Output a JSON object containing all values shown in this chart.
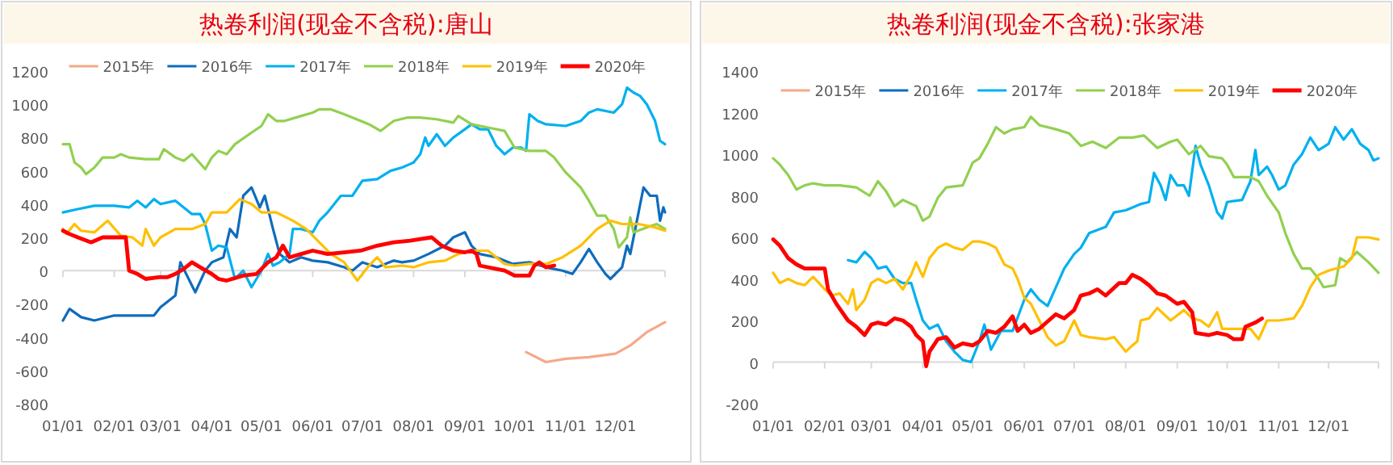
{
  "chart_data": [
    {
      "type": "line",
      "title": "热卷利润(现金不含税):唐山",
      "legend": "top",
      "ylim": [
        -800,
        1200
      ],
      "yticks": [
        -800,
        -600,
        -400,
        -200,
        0,
        200,
        400,
        600,
        800,
        1000,
        1200
      ],
      "xlim": [
        "--01-01",
        "--12-31"
      ],
      "xticks": [
        {
          "value": "--01-01",
          "label": "01/01"
        },
        {
          "value": "--02-01",
          "label": "02/01"
        },
        {
          "value": "--03-01",
          "label": "03/01"
        },
        {
          "value": "--04-01",
          "label": "04/01"
        },
        {
          "value": "--05-01",
          "label": "05/01"
        },
        {
          "value": "--06-01",
          "label": "06/01"
        },
        {
          "value": "--07-01",
          "label": "07/01"
        },
        {
          "value": "--08-01",
          "label": "08/01"
        },
        {
          "value": "--09-01",
          "label": "09/01"
        },
        {
          "value": "--10-01",
          "label": "10/01"
        },
        {
          "value": "--11-01",
          "label": "11/01"
        },
        {
          "value": "--12-01",
          "label": "12/01"
        },
        {
          "value": "--12-31",
          "label": null
        }
      ],
      "series": [
        {
          "name": "2015年",
          "color": "#f4a98a",
          "x": [
            "--10-08",
            "--10-20",
            "--11-01",
            "--11-15",
            "--12-01",
            "--12-10",
            "--12-20",
            "--12-31"
          ],
          "values": [
            -490,
            -550,
            -530,
            -520,
            -500,
            -450,
            -370,
            -310
          ]
        },
        {
          "name": "2016年",
          "color": "#0f6cbd",
          "x": [
            "--01-01",
            "--01-05",
            "--01-12",
            "--01-20",
            "--02-01",
            "--02-15",
            "--02-25",
            "--03-01",
            "--03-10",
            "--03-13",
            "--03-18",
            "--03-22",
            "--03-28",
            "--04-01",
            "--04-08",
            "--04-12",
            "--04-16",
            "--04-20",
            "--04-25",
            "--04-30",
            "--05-03",
            "--05-08",
            "--05-12",
            "--05-18",
            "--05-25",
            "--06-01",
            "--06-10",
            "--06-20",
            "--06-25",
            "--07-01",
            "--07-10",
            "--07-20",
            "--07-25",
            "--08-01",
            "--08-10",
            "--08-20",
            "--08-25",
            "--09-01",
            "--09-05",
            "--09-10",
            "--09-20",
            "--09-30",
            "--10-10",
            "--10-20",
            "--10-30",
            "--11-05",
            "--11-10",
            "--11-15",
            "--11-20",
            "--11-25",
            "--11-28",
            "--12-05",
            "--12-08",
            "--12-10",
            "--12-15",
            "--12-18",
            "--12-22",
            "--12-26",
            "--12-28",
            "--12-30",
            "--12-31"
          ],
          "values": [
            -300,
            -230,
            -280,
            -300,
            -270,
            -270,
            -270,
            -220,
            -150,
            50,
            -50,
            -130,
            0,
            50,
            80,
            250,
            200,
            450,
            500,
            380,
            450,
            250,
            100,
            50,
            80,
            60,
            50,
            20,
            0,
            50,
            20,
            60,
            50,
            60,
            100,
            150,
            200,
            230,
            150,
            100,
            80,
            40,
            50,
            20,
            0,
            -20,
            50,
            130,
            50,
            -20,
            -50,
            20,
            150,
            100,
            350,
            500,
            450,
            450,
            300,
            380,
            350
          ]
        },
        {
          "name": "2017年",
          "color": "#00b0f0",
          "x": [
            "--01-01",
            "--01-10",
            "--01-20",
            "--02-01",
            "--02-10",
            "--02-15",
            "--02-20",
            "--02-25",
            "--03-01",
            "--03-10",
            "--03-15",
            "--03-20",
            "--03-25",
            "--03-28",
            "--04-01",
            "--04-05",
            "--04-10",
            "--04-15",
            "--04-20",
            "--04-25",
            "--05-01",
            "--05-05",
            "--05-08",
            "--05-12",
            "--05-18",
            "--05-20",
            "--05-25",
            "--06-01",
            "--06-05",
            "--06-10",
            "--06-18",
            "--06-25",
            "--07-01",
            "--07-10",
            "--07-18",
            "--07-25",
            "--08-01",
            "--08-05",
            "--08-08",
            "--08-10",
            "--08-15",
            "--08-20",
            "--08-25",
            "--09-01",
            "--09-05",
            "--09-10",
            "--09-15",
            "--09-20",
            "--09-25",
            "--09-30",
            "--10-05",
            "--10-08",
            "--10-10",
            "--10-15",
            "--10-20",
            "--11-01",
            "--11-10",
            "--11-15",
            "--11-20",
            "--11-30",
            "--12-05",
            "--12-08",
            "--12-12",
            "--12-16",
            "--12-20",
            "--12-25",
            "--12-28",
            "--12-31"
          ],
          "values": [
            350,
            370,
            390,
            390,
            380,
            420,
            380,
            430,
            400,
            420,
            380,
            340,
            340,
            280,
            120,
            150,
            140,
            -50,
            0,
            -100,
            0,
            100,
            30,
            50,
            100,
            250,
            250,
            230,
            300,
            350,
            450,
            450,
            540,
            550,
            600,
            620,
            650,
            700,
            800,
            750,
            820,
            750,
            800,
            850,
            880,
            850,
            850,
            750,
            700,
            740,
            740,
            720,
            940,
            900,
            880,
            870,
            900,
            950,
            970,
            950,
            1000,
            1100,
            1070,
            1050,
            1000,
            900,
            780,
            760
          ]
        },
        {
          "name": "2018年",
          "color": "#92d050",
          "x": [
            "--01-01",
            "--01-05",
            "--01-08",
            "--01-12",
            "--01-15",
            "--01-20",
            "--01-25",
            "--02-01",
            "--02-05",
            "--02-10",
            "--02-20",
            "--02-28",
            "--03-03",
            "--03-10",
            "--03-15",
            "--03-20",
            "--03-28",
            "--04-01",
            "--04-05",
            "--04-10",
            "--04-15",
            "--04-25",
            "--05-01",
            "--05-05",
            "--05-10",
            "--05-15",
            "--05-25",
            "--06-01",
            "--06-05",
            "--06-12",
            "--06-20",
            "--06-30",
            "--07-05",
            "--07-12",
            "--07-20",
            "--07-28",
            "--08-05",
            "--08-15",
            "--08-25",
            "--08-28",
            "--09-05",
            "--09-15",
            "--09-25",
            "--10-01",
            "--10-10",
            "--10-20",
            "--10-25",
            "--11-01",
            "--11-10",
            "--11-15",
            "--11-20",
            "--11-25",
            "--11-30",
            "--12-03",
            "--12-08",
            "--12-10",
            "--12-12",
            "--12-20",
            "--12-26",
            "--12-31"
          ],
          "values": [
            760,
            760,
            650,
            620,
            580,
            620,
            680,
            680,
            700,
            680,
            670,
            670,
            730,
            680,
            660,
            700,
            610,
            680,
            720,
            700,
            760,
            830,
            870,
            940,
            900,
            900,
            930,
            950,
            970,
            970,
            940,
            900,
            880,
            840,
            900,
            920,
            920,
            910,
            890,
            930,
            880,
            860,
            840,
            740,
            720,
            720,
            680,
            590,
            500,
            420,
            330,
            330,
            250,
            140,
            200,
            320,
            230,
            260,
            280,
            250
          ]
        },
        {
          "name": "2019年",
          "color": "#ffc000",
          "x": [
            "--01-01",
            "--01-03",
            "--01-08",
            "--01-12",
            "--01-20",
            "--01-28",
            "--02-05",
            "--02-12",
            "--02-18",
            "--02-20",
            "--02-25",
            "--03-01",
            "--03-10",
            "--03-20",
            "--03-28",
            "--04-01",
            "--04-10",
            "--04-18",
            "--04-25",
            "--05-01",
            "--05-10",
            "--05-20",
            "--05-28",
            "--06-05",
            "--06-12",
            "--06-20",
            "--06-28",
            "--07-05",
            "--07-10",
            "--07-15",
            "--07-25",
            "--08-01",
            "--08-10",
            "--08-20",
            "--08-28",
            "--09-05",
            "--09-15",
            "--09-20",
            "--09-25",
            "--10-01",
            "--10-10",
            "--10-20",
            "--10-30",
            "--11-10",
            "--11-20",
            "--11-28",
            "--12-05",
            "--12-15",
            "--12-25",
            "--12-31"
          ],
          "values": [
            250,
            220,
            280,
            240,
            230,
            300,
            210,
            200,
            150,
            250,
            150,
            200,
            250,
            250,
            280,
            350,
            350,
            430,
            400,
            350,
            350,
            300,
            250,
            170,
            100,
            50,
            -60,
            30,
            80,
            20,
            30,
            20,
            50,
            60,
            100,
            120,
            120,
            80,
            40,
            30,
            40,
            40,
            80,
            150,
            250,
            300,
            280,
            280,
            260,
            240
          ]
        },
        {
          "name": "2020年",
          "color": "#ff0000",
          "x": [
            "--01-01",
            "--01-05",
            "--01-10",
            "--01-18",
            "--01-25",
            "--02-01",
            "--02-08",
            "--02-10",
            "--02-15",
            "--02-20",
            "--02-28",
            "--03-05",
            "--03-10",
            "--03-15",
            "--03-20",
            "--03-25",
            "--04-01",
            "--04-05",
            "--04-10",
            "--04-20",
            "--04-28",
            "--05-05",
            "--05-10",
            "--05-14",
            "--05-18",
            "--05-25",
            "--06-01",
            "--06-10",
            "--06-20",
            "--06-30",
            "--07-10",
            "--07-20",
            "--07-30",
            "--08-05",
            "--08-12",
            "--08-18",
            "--08-25",
            "--09-01",
            "--09-05",
            "--09-08",
            "--09-10",
            "--09-20",
            "--09-25",
            "--10-01",
            "--10-10",
            "--10-13",
            "--10-16",
            "--10-20",
            "--10-25"
          ],
          "values": [
            240,
            220,
            200,
            170,
            200,
            200,
            200,
            0,
            -20,
            -50,
            -40,
            -40,
            -20,
            10,
            50,
            20,
            -20,
            -50,
            -60,
            -30,
            -20,
            50,
            80,
            150,
            80,
            100,
            120,
            100,
            110,
            120,
            150,
            170,
            180,
            190,
            200,
            150,
            120,
            110,
            120,
            100,
            30,
            10,
            0,
            -30,
            -30,
            30,
            50,
            20,
            30
          ]
        }
      ]
    },
    {
      "type": "line",
      "title": "热卷利润(现金不含税):张家港",
      "legend": "top",
      "ylim": [
        -200,
        1400
      ],
      "yticks": [
        -200,
        0,
        200,
        400,
        600,
        800,
        1000,
        1200,
        1400
      ],
      "xlim": [
        "--01-01",
        "--12-31"
      ],
      "xticks": [
        {
          "value": "--01-01",
          "label": "01/01"
        },
        {
          "value": "--02-01",
          "label": "02/01"
        },
        {
          "value": "--03-01",
          "label": "03/01"
        },
        {
          "value": "--04-01",
          "label": "04/01"
        },
        {
          "value": "--05-01",
          "label": "05/01"
        },
        {
          "value": "--06-01",
          "label": "06/01"
        },
        {
          "value": "--07-01",
          "label": "07/01"
        },
        {
          "value": "--08-01",
          "label": "08/01"
        },
        {
          "value": "--09-01",
          "label": "09/01"
        },
        {
          "value": "--10-01",
          "label": "10/01"
        },
        {
          "value": "--11-01",
          "label": "11/01"
        },
        {
          "value": "--12-01",
          "label": "12/01"
        },
        {
          "value": "--12-31",
          "label": null
        }
      ],
      "series": [
        {
          "name": "2015年",
          "color": "#f4a98a"
        },
        {
          "name": "2016年",
          "color": "#0f6cbd"
        },
        {
          "name": "2017年",
          "color": "#00b0f0",
          "x": [
            "--02-15",
            "--02-20",
            "--02-25",
            "--03-01",
            "--03-05",
            "--03-10",
            "--03-15",
            "--03-20",
            "--03-25",
            "--03-28",
            "--04-01",
            "--04-05",
            "--04-10",
            "--04-15",
            "--04-20",
            "--04-25",
            "--04-30",
            "--05-05",
            "--05-08",
            "--05-12",
            "--05-18",
            "--05-25",
            "--06-01",
            "--06-05",
            "--06-10",
            "--06-15",
            "--06-20",
            "--06-25",
            "--07-01",
            "--07-05",
            "--07-10",
            "--07-20",
            "--07-25",
            "--08-01",
            "--08-10",
            "--08-15",
            "--08-18",
            "--08-22",
            "--08-25",
            "--08-28",
            "--09-01",
            "--09-05",
            "--09-08",
            "--09-12",
            "--09-15",
            "--09-20",
            "--09-25",
            "--09-28",
            "--10-01",
            "--10-10",
            "--10-15",
            "--10-18",
            "--10-20",
            "--10-25",
            "--10-28",
            "--11-01",
            "--11-05",
            "--11-10",
            "--11-15",
            "--11-20",
            "--11-25",
            "--12-01",
            "--12-05",
            "--12-10",
            "--12-15",
            "--12-20",
            "--12-25",
            "--12-28",
            "--12-31"
          ],
          "values": [
            490,
            480,
            530,
            500,
            450,
            460,
            400,
            380,
            380,
            300,
            200,
            160,
            180,
            100,
            50,
            10,
            0,
            100,
            180,
            60,
            150,
            150,
            300,
            350,
            300,
            270,
            360,
            450,
            520,
            550,
            620,
            650,
            720,
            730,
            760,
            770,
            910,
            850,
            780,
            900,
            850,
            850,
            800,
            1040,
            950,
            850,
            720,
            690,
            770,
            780,
            870,
            1020,
            900,
            940,
            900,
            830,
            850,
            950,
            1000,
            1080,
            1020,
            1050,
            1130,
            1070,
            1120,
            1050,
            1020,
            970,
            980
          ]
        },
        {
          "name": "2018年",
          "color": "#92d050",
          "x": [
            "--01-01",
            "--01-05",
            "--01-10",
            "--01-15",
            "--01-20",
            "--01-25",
            "--02-01",
            "--02-10",
            "--02-20",
            "--02-28",
            "--03-05",
            "--03-10",
            "--03-15",
            "--03-20",
            "--03-28",
            "--04-01",
            "--04-05",
            "--04-10",
            "--04-15",
            "--04-25",
            "--05-01",
            "--05-05",
            "--05-10",
            "--05-15",
            "--05-20",
            "--05-25",
            "--06-01",
            "--06-05",
            "--06-10",
            "--06-20",
            "--06-28",
            "--07-05",
            "--07-12",
            "--07-20",
            "--07-28",
            "--08-05",
            "--08-12",
            "--08-20",
            "--08-28",
            "--09-01",
            "--09-08",
            "--09-15",
            "--09-20",
            "--09-28",
            "--10-01",
            "--10-05",
            "--10-15",
            "--10-20",
            "--10-25",
            "--11-01",
            "--11-05",
            "--11-10",
            "--11-15",
            "--11-20",
            "--11-25",
            "--11-28",
            "--12-05",
            "--12-08",
            "--12-12",
            "--12-18",
            "--12-25",
            "--12-31"
          ],
          "values": [
            980,
            950,
            900,
            830,
            850,
            860,
            850,
            850,
            840,
            800,
            870,
            820,
            750,
            780,
            750,
            680,
            700,
            790,
            840,
            850,
            960,
            980,
            1050,
            1130,
            1100,
            1120,
            1130,
            1180,
            1140,
            1120,
            1100,
            1040,
            1060,
            1030,
            1080,
            1080,
            1090,
            1030,
            1060,
            1070,
            1000,
            1040,
            990,
            980,
            950,
            890,
            890,
            870,
            800,
            720,
            620,
            520,
            450,
            450,
            400,
            360,
            370,
            500,
            480,
            530,
            480,
            430
          ]
        },
        {
          "name": "2019年",
          "color": "#ffc000",
          "x": [
            "--01-01",
            "--01-05",
            "--01-10",
            "--01-15",
            "--01-20",
            "--01-25",
            "--02-01",
            "--02-05",
            "--02-10",
            "--02-15",
            "--02-18",
            "--02-20",
            "--02-25",
            "--03-01",
            "--03-05",
            "--03-10",
            "--03-15",
            "--03-20",
            "--03-25",
            "--03-28",
            "--04-01",
            "--04-05",
            "--04-10",
            "--04-15",
            "--04-20",
            "--04-25",
            "--05-01",
            "--05-05",
            "--05-10",
            "--05-15",
            "--05-20",
            "--05-25",
            "--05-28",
            "--06-01",
            "--06-05",
            "--06-10",
            "--06-15",
            "--06-20",
            "--06-25",
            "--07-01",
            "--07-05",
            "--07-10",
            "--07-20",
            "--07-25",
            "--08-01",
            "--08-05",
            "--08-08",
            "--08-10",
            "--08-15",
            "--08-20",
            "--08-28",
            "--09-05",
            "--09-10",
            "--09-15",
            "--09-20",
            "--09-25",
            "--09-28",
            "--10-05",
            "--10-15",
            "--10-20",
            "--10-25",
            "--11-01",
            "--11-10",
            "--11-15",
            "--11-20",
            "--11-25",
            "--12-01",
            "--12-10",
            "--12-15",
            "--12-18",
            "--12-25",
            "--12-31"
          ],
          "values": [
            430,
            380,
            400,
            380,
            370,
            410,
            350,
            320,
            330,
            280,
            350,
            250,
            300,
            380,
            400,
            380,
            400,
            350,
            420,
            480,
            410,
            500,
            550,
            570,
            550,
            540,
            580,
            580,
            570,
            550,
            470,
            450,
            400,
            310,
            280,
            200,
            120,
            80,
            100,
            200,
            130,
            120,
            110,
            120,
            50,
            80,
            100,
            200,
            210,
            260,
            200,
            250,
            210,
            200,
            170,
            240,
            160,
            160,
            160,
            110,
            200,
            200,
            210,
            270,
            360,
            420,
            440,
            460,
            500,
            600,
            600,
            590
          ]
        },
        {
          "name": "2020年",
          "color": "#ff0000",
          "x": [
            "--01-01",
            "--01-05",
            "--01-10",
            "--01-15",
            "--01-20",
            "--02-01",
            "--02-03",
            "--02-08",
            "--02-15",
            "--02-20",
            "--02-25",
            "--03-01",
            "--03-05",
            "--03-10",
            "--03-15",
            "--03-20",
            "--03-25",
            "--03-28",
            "--04-01",
            "--04-03",
            "--04-05",
            "--04-10",
            "--04-15",
            "--04-20",
            "--04-25",
            "--05-01",
            "--05-05",
            "--05-10",
            "--05-15",
            "--05-20",
            "--05-25",
            "--05-28",
            "--06-01",
            "--06-05",
            "--06-10",
            "--06-20",
            "--06-25",
            "--07-01",
            "--07-05",
            "--07-10",
            "--07-15",
            "--07-20",
            "--07-28",
            "--08-01",
            "--08-05",
            "--08-10",
            "--08-15",
            "--08-20",
            "--08-25",
            "--09-01",
            "--09-05",
            "--09-10",
            "--09-12",
            "--09-20",
            "--09-25",
            "--10-01",
            "--10-05",
            "--10-10",
            "--10-12",
            "--10-18",
            "--10-22"
          ],
          "values": [
            590,
            560,
            500,
            470,
            450,
            450,
            350,
            280,
            200,
            170,
            130,
            180,
            190,
            180,
            210,
            200,
            170,
            130,
            100,
            -20,
            50,
            110,
            120,
            70,
            90,
            80,
            100,
            150,
            140,
            170,
            220,
            150,
            180,
            140,
            160,
            230,
            210,
            250,
            320,
            330,
            350,
            320,
            380,
            380,
            420,
            400,
            370,
            330,
            320,
            280,
            290,
            240,
            140,
            130,
            140,
            130,
            110,
            110,
            170,
            190,
            210
          ]
        }
      ]
    }
  ]
}
